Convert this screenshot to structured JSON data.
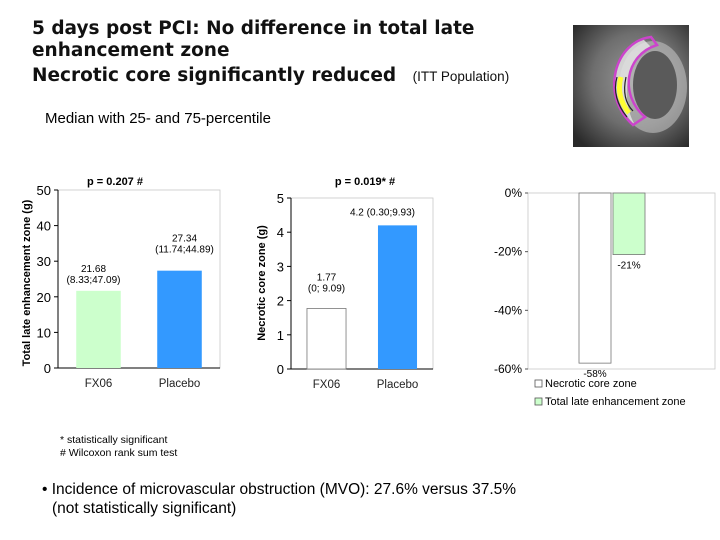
{
  "header": {
    "title_line1": "5 days post PCI: No difference in total late",
    "title_line2": "enhancement zone",
    "title_line3": "Necrotic core significantly reduced",
    "population": "(ITT Population)",
    "subtitle": "Median with 25- and 75-percentile"
  },
  "mri_image": {
    "icon": "cardiac-mri-thumbnail"
  },
  "colors": {
    "fx06_bar": "#ccffcc",
    "placebo_bar": "#3399ff",
    "necrotic_bar": "#ffffff",
    "total_bar": "#ccffcc",
    "axis": "#000000"
  },
  "chart_data": [
    {
      "type": "bar",
      "title": "p = 0.207 #",
      "ylabel": "Total late enhancement zone (g)",
      "categories": [
        "FX06",
        "Placebo"
      ],
      "values": [
        21.68,
        27.34
      ],
      "ylim": [
        0,
        50
      ],
      "yticks": [
        "0",
        "10",
        "20",
        "30",
        "40",
        "50"
      ],
      "data_labels": [
        [
          "21.68",
          "(8.33;47.09)"
        ],
        [
          "27.34",
          "(11.74;44.89)"
        ]
      ]
    },
    {
      "type": "bar",
      "title": "p = 0.019* #",
      "ylabel": "Necrotic core zone (g)",
      "categories": [
        "FX06",
        "Placebo"
      ],
      "values": [
        1.77,
        4.2
      ],
      "ylim": [
        0,
        5
      ],
      "yticks": [
        "0",
        "1",
        "2",
        "3",
        "4",
        "5"
      ],
      "data_labels": [
        [
          "1.77",
          "(0; 9.09)"
        ],
        [
          "4.2 (0.30;9.93)"
        ]
      ]
    },
    {
      "type": "bar",
      "title": "",
      "categories": [
        "Necrotic core zone",
        "Total late enhancement zone"
      ],
      "values": [
        -58,
        -21
      ],
      "ylim": [
        -60,
        0
      ],
      "yticks": [
        "0%",
        "-20%",
        "-40%",
        "-60%"
      ],
      "data_labels": [
        "-58%",
        "-21%"
      ],
      "legend": [
        "Necrotic core zone",
        "Total late enhancement zone"
      ],
      "legend_position": "bottom"
    }
  ],
  "footnotes": {
    "line1": "* statistically significant",
    "line2": "# Wilcoxon rank sum test"
  },
  "bullet": {
    "marker": "•",
    "line1": "Incidence of microvascular obstruction (MVO): 27.6% versus 37.5%",
    "line2": "(not statistically significant)"
  }
}
